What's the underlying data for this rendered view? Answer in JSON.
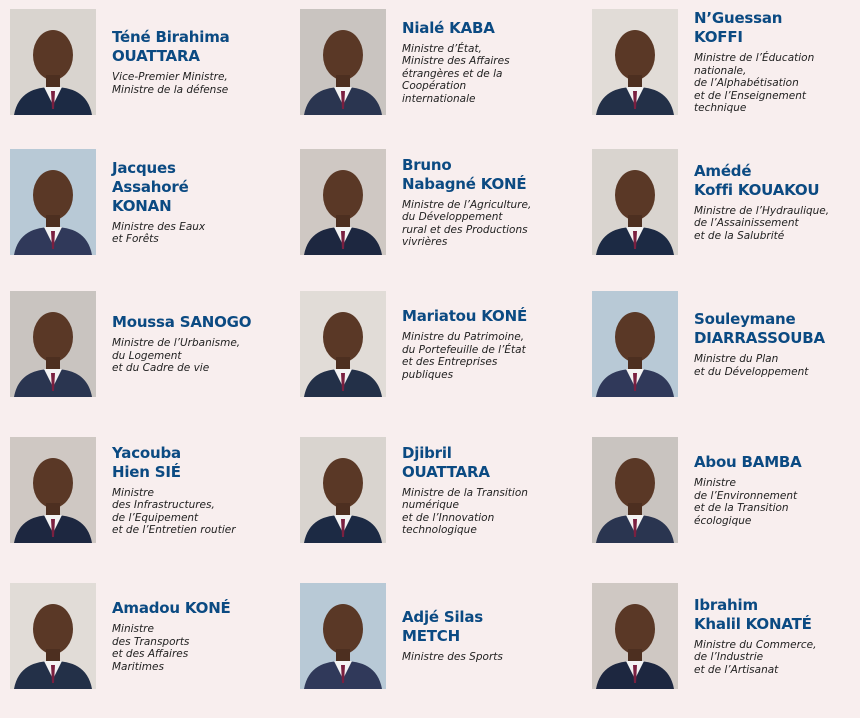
{
  "ministers": [
    {
      "name": [
        "Téné Birahima",
        "OUATTARA"
      ],
      "role": [
        "Vice-Premier Ministre,",
        "Ministre de la défense"
      ]
    },
    {
      "name": [
        "Nialé KABA"
      ],
      "role": [
        "Ministre d’État,",
        "Ministre des Affaires",
        "étrangères et de la",
        "Coopération",
        "internationale"
      ]
    },
    {
      "name": [
        "N’Guessan",
        "KOFFI"
      ],
      "role": [
        "Ministre de l’Éducation",
        "nationale,",
        "de l’Alphabétisation",
        "et de l’Enseignement",
        "technique"
      ]
    },
    {
      "name": [
        "Jacques",
        "Assahoré",
        "KONAN"
      ],
      "role": [
        "Ministre des Eaux",
        "et Forêts"
      ]
    },
    {
      "name": [
        "Bruno",
        "Nabagné KONÉ"
      ],
      "role": [
        "Ministre de l’Agriculture,",
        "du Développement",
        "rural et des Productions",
        "vivrières"
      ]
    },
    {
      "name": [
        "Amédé",
        "Koffi KOUAKOU"
      ],
      "role": [
        "Ministre de l’Hydraulique,",
        "de l’Assainissement",
        "et de la Salubrité"
      ]
    },
    {
      "name": [
        "Moussa SANOGO"
      ],
      "role": [
        "Ministre de l’Urbanisme,",
        "du Logement",
        "et du Cadre de vie"
      ]
    },
    {
      "name": [
        "Mariatou KONÉ"
      ],
      "role": [
        "Ministre du Patrimoine,",
        "du Portefeuille de l’État",
        "et des Entreprises",
        "publiques"
      ]
    },
    {
      "name": [
        "Souleymane",
        "DIARRASSOUBA"
      ],
      "role": [
        "Ministre du Plan",
        "et du Développement"
      ]
    },
    {
      "name": [
        "Yacouba",
        "Hien SIÉ"
      ],
      "role": [
        "Ministre",
        "des Infrastructures,",
        "de l’Equipement",
        "et de l’Entretien routier"
      ]
    },
    {
      "name": [
        "Djibril",
        "OUATTARA"
      ],
      "role": [
        "Ministre de la Transition",
        "numérique",
        "et de l’Innovation",
        "technologique"
      ]
    },
    {
      "name": [
        "Abou BAMBA"
      ],
      "role": [
        "Ministre",
        "de l’Environnement",
        "et de la Transition",
        "écologique"
      ]
    },
    {
      "name": [
        "Amadou KONÉ"
      ],
      "role": [
        "Ministre",
        "des Transports",
        "et des Affaires",
        "Maritimes"
      ]
    },
    {
      "name": [
        "Adjé Silas",
        "METCH"
      ],
      "role": [
        "Ministre des Sports"
      ]
    },
    {
      "name": [
        "Ibrahim",
        "Khalil KONATÉ"
      ],
      "role": [
        "Ministre du Commerce,",
        "de l’Industrie",
        "et de l’Artisanat"
      ]
    }
  ]
}
